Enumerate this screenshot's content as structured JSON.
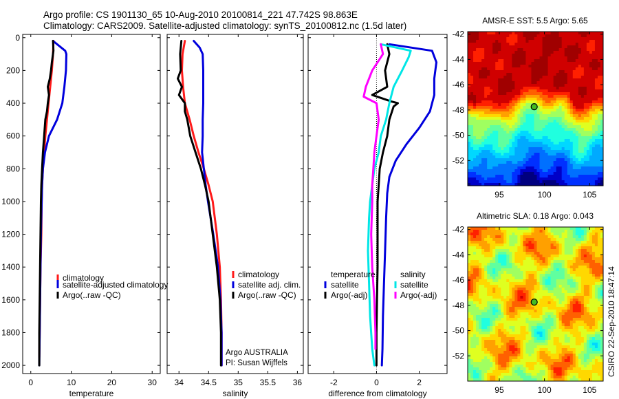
{
  "header": {
    "line1": "Argo profile: CS 1901130_65 10-Aug-2010 20100814_221 47.742S 98.863E",
    "line2": "Climatology: CARS2009. Satellite-adjusted climatology: synTS_20100812.nc (1.5d later)"
  },
  "credit": "CSIRO 22-Sep-2010 18:47:14",
  "colors": {
    "climatology": "#ff1a1a",
    "satellite": "#0000dd",
    "argo": "#000000",
    "satellite_salinity": "#00e6e6",
    "argo_adj_salinity": "#ff00ff"
  },
  "chart_data": [
    {
      "type": "line",
      "id": "temperature-profile",
      "xlabel": "temperature",
      "xlim": [
        -2,
        32
      ],
      "ylim": [
        2050,
        -20
      ],
      "xticks": [
        0,
        10,
        20,
        30
      ],
      "yticks": [
        0,
        200,
        400,
        600,
        800,
        1000,
        1200,
        1400,
        1600,
        1800,
        2000
      ],
      "legend": {
        "placement": "bottom-right",
        "entries": [
          "climatology",
          "satellite-adjusted climatology",
          "Argo(..raw -QC)"
        ]
      },
      "series": [
        {
          "name": "climatology",
          "color": "#ff1a1a",
          "points": [
            [
              5.6,
              20
            ],
            [
              5.5,
              100
            ],
            [
              5.2,
              200
            ],
            [
              4.8,
              300
            ],
            [
              4.4,
              400
            ],
            [
              4.0,
              500
            ],
            [
              3.6,
              600
            ],
            [
              3.3,
              700
            ],
            [
              3.0,
              800
            ],
            [
              2.8,
              900
            ],
            [
              2.7,
              1000
            ],
            [
              2.6,
              1200
            ],
            [
              2.4,
              1400
            ],
            [
              2.3,
              1600
            ],
            [
              2.2,
              1800
            ],
            [
              2.1,
              1950
            ]
          ]
        },
        {
          "name": "satellite-adjusted climatology",
          "color": "#0000dd",
          "points": [
            [
              5.5,
              20
            ],
            [
              7.5,
              60
            ],
            [
              8.5,
              80
            ],
            [
              8.8,
              100
            ],
            [
              8.7,
              200
            ],
            [
              8.3,
              300
            ],
            [
              7.8,
              400
            ],
            [
              6.5,
              500
            ],
            [
              4.5,
              600
            ],
            [
              3.5,
              700
            ],
            [
              3.0,
              800
            ],
            [
              2.8,
              900
            ],
            [
              2.7,
              1000
            ],
            [
              2.5,
              1200
            ],
            [
              2.4,
              1400
            ],
            [
              2.3,
              1600
            ],
            [
              2.2,
              1800
            ],
            [
              2.1,
              2000
            ]
          ]
        },
        {
          "name": "Argo(..raw -QC)",
          "color": "#000000",
          "points": [
            [
              5.5,
              20
            ],
            [
              5.6,
              80
            ],
            [
              5.2,
              150
            ],
            [
              5.0,
              200
            ],
            [
              4.7,
              250
            ],
            [
              4.2,
              300
            ],
            [
              4.5,
              350
            ],
            [
              4.2,
              400
            ],
            [
              4.0,
              450
            ],
            [
              3.6,
              500
            ],
            [
              3.3,
              600
            ],
            [
              3.0,
              700
            ],
            [
              2.8,
              800
            ],
            [
              2.6,
              900
            ],
            [
              2.5,
              1000
            ],
            [
              2.4,
              1200
            ],
            [
              2.3,
              1400
            ],
            [
              2.2,
              1600
            ],
            [
              2.1,
              1800
            ],
            [
              2.1,
              2000
            ]
          ]
        }
      ]
    },
    {
      "type": "line",
      "id": "salinity-profile",
      "xlabel": "salinity",
      "xlim": [
        33.8,
        36.1
      ],
      "ylim": [
        2050,
        -20
      ],
      "xticks": [
        34,
        34.5,
        35,
        35.5,
        36
      ],
      "yticks": [
        0,
        200,
        400,
        600,
        800,
        1000,
        1200,
        1400,
        1600,
        1800,
        2000
      ],
      "annotation": [
        "Argo AUSTRALIA",
        "PI: Susan Wijffels"
      ],
      "legend": {
        "placement": "bottom-right",
        "entries": [
          "climatology",
          "satellite adj. clim.",
          "Argo(..raw -QC)"
        ]
      },
      "series": [
        {
          "name": "climatology",
          "color": "#ff1a1a",
          "points": [
            [
              34.1,
              20
            ],
            [
              34.06,
              100
            ],
            [
              34.05,
              200
            ],
            [
              34.07,
              300
            ],
            [
              34.1,
              400
            ],
            [
              34.18,
              500
            ],
            [
              34.25,
              600
            ],
            [
              34.33,
              700
            ],
            [
              34.42,
              800
            ],
            [
              34.5,
              900
            ],
            [
              34.57,
              1000
            ],
            [
              34.64,
              1200
            ],
            [
              34.69,
              1400
            ],
            [
              34.71,
              1600
            ],
            [
              34.72,
              1800
            ],
            [
              34.72,
              2000
            ]
          ]
        },
        {
          "name": "satellite adj. clim.",
          "color": "#0000dd",
          "points": [
            [
              34.25,
              20
            ],
            [
              34.35,
              60
            ],
            [
              34.4,
              100
            ],
            [
              34.41,
              200
            ],
            [
              34.41,
              300
            ],
            [
              34.41,
              400
            ],
            [
              34.4,
              500
            ],
            [
              34.4,
              600
            ],
            [
              34.39,
              700
            ],
            [
              34.42,
              800
            ],
            [
              34.45,
              900
            ],
            [
              34.49,
              1000
            ],
            [
              34.58,
              1200
            ],
            [
              34.66,
              1400
            ],
            [
              34.7,
              1600
            ],
            [
              34.72,
              1800
            ],
            [
              34.72,
              2000
            ]
          ]
        },
        {
          "name": "Argo(..raw -QC)",
          "color": "#000000",
          "points": [
            [
              34.04,
              20
            ],
            [
              34.02,
              100
            ],
            [
              34.03,
              200
            ],
            [
              33.98,
              250
            ],
            [
              34.05,
              300
            ],
            [
              34.0,
              350
            ],
            [
              34.1,
              400
            ],
            [
              34.1,
              450
            ],
            [
              34.14,
              500
            ],
            [
              34.19,
              600
            ],
            [
              34.28,
              700
            ],
            [
              34.37,
              800
            ],
            [
              34.44,
              900
            ],
            [
              34.5,
              1000
            ],
            [
              34.57,
              1200
            ],
            [
              34.64,
              1400
            ],
            [
              34.69,
              1600
            ],
            [
              34.71,
              1800
            ],
            [
              34.71,
              2000
            ]
          ]
        }
      ]
    },
    {
      "type": "line",
      "id": "difference-profile",
      "xlabel": "difference from climatology",
      "xlim": [
        -3.2,
        3.3
      ],
      "ylim": [
        2050,
        -20
      ],
      "xticks": [
        -2,
        0,
        2
      ],
      "yticks": [
        0,
        200,
        400,
        600,
        800,
        1000,
        1200,
        1400,
        1600,
        1800,
        2000
      ],
      "zero_line": true,
      "legend": {
        "placement": "bottom",
        "groups": [
          {
            "title": "temperature",
            "entries": [
              "satellite",
              "Argo(-adj)"
            ]
          },
          {
            "title": "salinity",
            "entries": [
              "satellite",
              "Argo(-adj)"
            ]
          }
        ]
      },
      "series": [
        {
          "name": "satellite",
          "group": "temperature",
          "color": "#0000dd",
          "points": [
            [
              0.6,
              40
            ],
            [
              2.6,
              80
            ],
            [
              2.8,
              150
            ],
            [
              2.7,
              250
            ],
            [
              2.7,
              350
            ],
            [
              2.5,
              450
            ],
            [
              2.0,
              550
            ],
            [
              1.4,
              650
            ],
            [
              0.9,
              750
            ],
            [
              0.6,
              850
            ],
            [
              0.5,
              950
            ],
            [
              0.45,
              1100
            ],
            [
              0.4,
              1300
            ],
            [
              0.35,
              1500
            ],
            [
              0.3,
              1700
            ],
            [
              0.28,
              1900
            ],
            [
              0.25,
              2000
            ]
          ]
        },
        {
          "name": "Argo(-adj)",
          "group": "temperature",
          "color": "#000000",
          "points": [
            [
              0.5,
              40
            ],
            [
              0.6,
              100
            ],
            [
              0.4,
              200
            ],
            [
              0.5,
              300
            ],
            [
              -0.2,
              350
            ],
            [
              0.7,
              390
            ],
            [
              1.0,
              400
            ],
            [
              0.8,
              420
            ],
            [
              0.6,
              500
            ],
            [
              0.5,
              600
            ],
            [
              0.3,
              700
            ],
            [
              0.15,
              800
            ],
            [
              0.1,
              900
            ],
            [
              0.05,
              1000
            ],
            [
              0.05,
              1200
            ],
            [
              0.05,
              1400
            ],
            [
              0.02,
              1600
            ],
            [
              0.0,
              1800
            ],
            [
              0.0,
              2000
            ]
          ]
        },
        {
          "name": "satellite",
          "group": "salinity",
          "color": "#00e6e6",
          "points": [
            [
              0.2,
              40
            ],
            [
              1.6,
              80
            ],
            [
              1.5,
              120
            ],
            [
              1.2,
              200
            ],
            [
              0.8,
              300
            ],
            [
              0.6,
              400
            ],
            [
              0.45,
              500
            ],
            [
              0.2,
              600
            ],
            [
              0.1,
              700
            ],
            [
              -0.1,
              800
            ],
            [
              -0.2,
              900
            ],
            [
              -0.3,
              1000
            ],
            [
              -0.35,
              1100
            ],
            [
              -0.4,
              1300
            ],
            [
              -0.35,
              1500
            ],
            [
              -0.3,
              1700
            ],
            [
              -0.2,
              1900
            ],
            [
              -0.1,
              2000
            ]
          ]
        },
        {
          "name": "Argo(-adj)",
          "group": "salinity",
          "color": "#ff00ff",
          "points": [
            [
              0.2,
              40
            ],
            [
              0.3,
              100
            ],
            [
              -0.2,
              200
            ],
            [
              -0.5,
              300
            ],
            [
              -0.6,
              360
            ],
            [
              0.0,
              400
            ],
            [
              0.1,
              500
            ],
            [
              0.0,
              600
            ],
            [
              -0.1,
              700
            ],
            [
              -0.15,
              800
            ],
            [
              -0.2,
              900
            ],
            [
              -0.2,
              1000
            ],
            [
              -0.25,
              1200
            ],
            [
              -0.2,
              1400
            ],
            [
              -0.1,
              1600
            ],
            [
              -0.05,
              1800
            ],
            [
              -0.05,
              1900
            ]
          ]
        }
      ]
    },
    {
      "type": "heatmap",
      "id": "sst-map",
      "title": "AMSR-E SST: 5.5 Argo: 5.65",
      "xlim": [
        91.5,
        106.5
      ],
      "ylim": [
        -54,
        -41.8
      ],
      "xticks": [
        95,
        100,
        105
      ],
      "yticks": [
        -42,
        -44,
        -46,
        -48,
        -50,
        -52
      ],
      "marker": {
        "lon": 98.863,
        "lat": -47.742
      }
    },
    {
      "type": "heatmap",
      "id": "sla-map",
      "title": "Altimetric SLA: 0.18 Argo: 0.043",
      "xlim": [
        91.5,
        106.5
      ],
      "ylim": [
        -54,
        -41.8
      ],
      "xticks": [
        95,
        100,
        105
      ],
      "yticks": [
        -42,
        -44,
        -46,
        -48,
        -50,
        -52
      ],
      "marker": {
        "lon": 98.863,
        "lat": -47.742
      }
    }
  ]
}
